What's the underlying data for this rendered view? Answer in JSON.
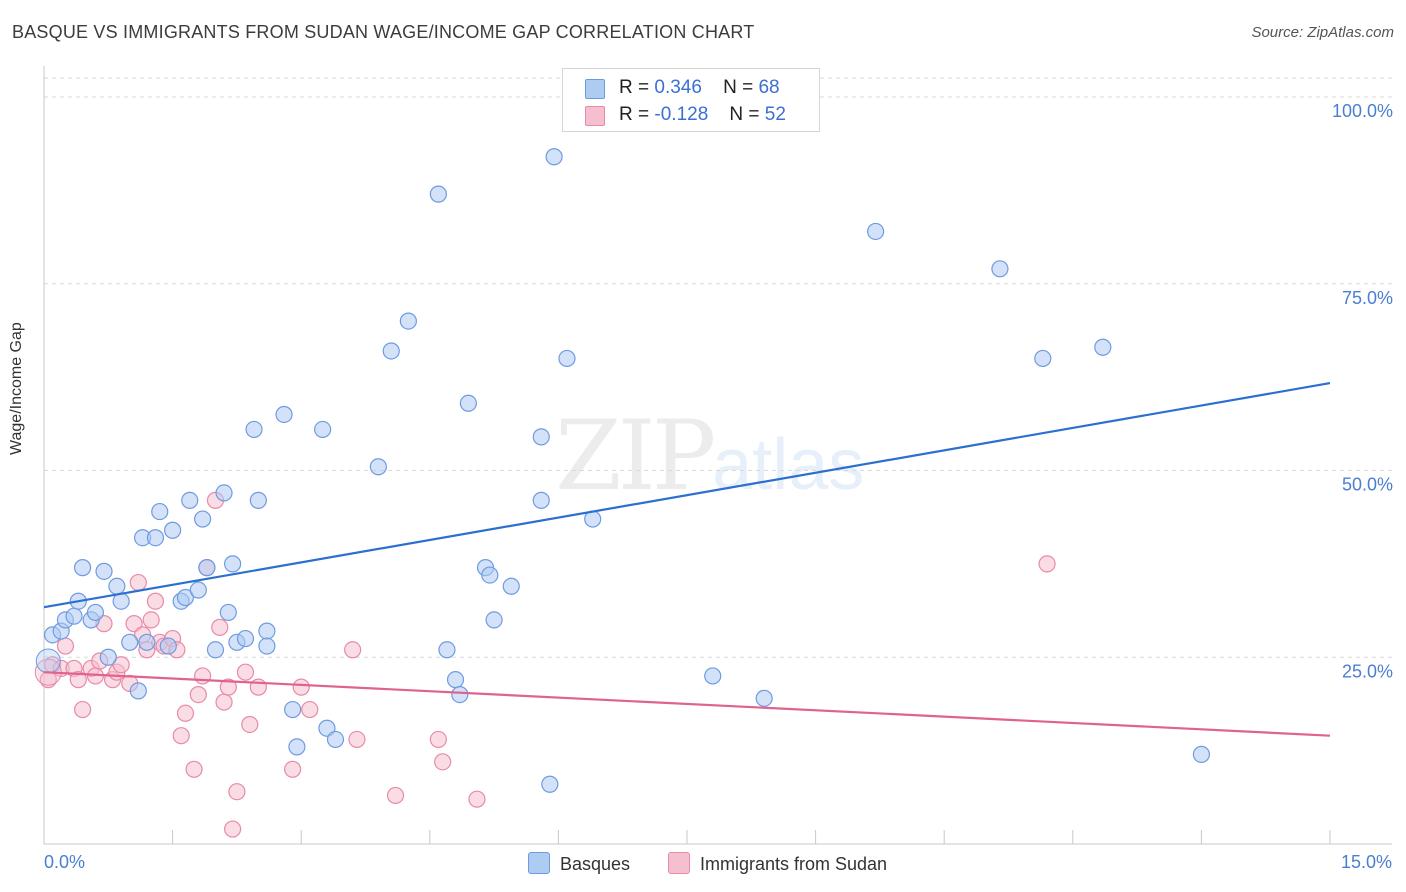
{
  "header": {
    "title": "BASQUE VS IMMIGRANTS FROM SUDAN WAGE/INCOME GAP CORRELATION CHART",
    "source": "Source: ZipAtlas.com"
  },
  "watermark": {
    "zip": "ZIP",
    "atlas": "atlas"
  },
  "legend_top": {
    "rows": [
      {
        "r_label": "R =",
        "r_value": "0.346",
        "n_label": "N =",
        "n_value": "68"
      },
      {
        "r_label": "R =",
        "r_value": "-0.128",
        "n_label": "N =",
        "n_value": "52"
      }
    ]
  },
  "legend_bottom": {
    "series1": "Basques",
    "series2": "Immigrants from Sudan"
  },
  "colors": {
    "blue_fill": "#aecbf2",
    "blue_stroke": "#6e9be0",
    "blue_line": "#2b6fd0",
    "pink_fill": "#f6bfd0",
    "pink_stroke": "#e88aa8",
    "pink_line": "#e0628e",
    "grid": "#d9d9d9",
    "tick_text": "#4a7fd0"
  },
  "chart_data": {
    "type": "scatter",
    "title": "BASQUE VS IMMIGRANTS FROM SUDAN WAGE/INCOME GAP CORRELATION CHART",
    "xlabel": "",
    "ylabel": "Wage/Income Gap",
    "xlim": [
      0,
      15
    ],
    "ylim": [
      0,
      100
    ],
    "x_tick_labels": [
      "0.0%",
      "15.0%"
    ],
    "y_ticks": [
      25,
      50,
      75,
      100
    ],
    "y_tick_labels": [
      "25.0%",
      "50.0%",
      "75.0%",
      "100.0%"
    ],
    "series": [
      {
        "name": "Basques",
        "R": 0.346,
        "N": 68,
        "trend": {
          "x": [
            0,
            15
          ],
          "y": [
            31.7,
            61.7
          ]
        },
        "points": [
          [
            0.1,
            28
          ],
          [
            0.2,
            28.5
          ],
          [
            0.25,
            30
          ],
          [
            0.35,
            30.5
          ],
          [
            0.4,
            32.5
          ],
          [
            0.45,
            37
          ],
          [
            0.55,
            30
          ],
          [
            0.6,
            31
          ],
          [
            0.7,
            36.5
          ],
          [
            0.75,
            25
          ],
          [
            0.85,
            34.5
          ],
          [
            0.9,
            32.5
          ],
          [
            1.0,
            27
          ],
          [
            1.1,
            20.5
          ],
          [
            1.15,
            41
          ],
          [
            1.2,
            27
          ],
          [
            1.3,
            41
          ],
          [
            1.35,
            44.5
          ],
          [
            1.45,
            26.5
          ],
          [
            1.5,
            42
          ],
          [
            1.6,
            32.5
          ],
          [
            1.65,
            33
          ],
          [
            1.7,
            46
          ],
          [
            1.8,
            34
          ],
          [
            1.85,
            43.5
          ],
          [
            1.9,
            37
          ],
          [
            2.0,
            26
          ],
          [
            2.1,
            47
          ],
          [
            2.15,
            31
          ],
          [
            2.2,
            37.5
          ],
          [
            2.25,
            27
          ],
          [
            2.35,
            27.5
          ],
          [
            2.45,
            55.5
          ],
          [
            2.5,
            46
          ],
          [
            2.6,
            28.5
          ],
          [
            2.6,
            26.5
          ],
          [
            2.8,
            57.5
          ],
          [
            2.9,
            18
          ],
          [
            2.95,
            13
          ],
          [
            3.25,
            55.5
          ],
          [
            3.3,
            15.5
          ],
          [
            3.4,
            14
          ],
          [
            3.9,
            50.5
          ],
          [
            4.05,
            66
          ],
          [
            4.25,
            70
          ],
          [
            4.6,
            87
          ],
          [
            4.7,
            26
          ],
          [
            4.8,
            22
          ],
          [
            4.85,
            20
          ],
          [
            4.95,
            59
          ],
          [
            5.15,
            37
          ],
          [
            5.2,
            36
          ],
          [
            5.25,
            30
          ],
          [
            5.45,
            34.5
          ],
          [
            5.8,
            46
          ],
          [
            5.8,
            54.5
          ],
          [
            5.9,
            8
          ],
          [
            5.95,
            92
          ],
          [
            6.1,
            65
          ],
          [
            6.4,
            43.5
          ],
          [
            7.8,
            22.5
          ],
          [
            8.4,
            19.5
          ],
          [
            9.7,
            82
          ],
          [
            11.15,
            77
          ],
          [
            11.65,
            65
          ],
          [
            12.35,
            66.5
          ],
          [
            13.5,
            12
          ]
        ]
      },
      {
        "name": "Immigrants from Sudan",
        "R": -0.128,
        "N": 52,
        "trend": {
          "x": [
            0,
            15
          ],
          "y": [
            23.0,
            14.5
          ]
        },
        "points": [
          [
            0.05,
            22
          ],
          [
            0.1,
            24
          ],
          [
            0.2,
            23.5
          ],
          [
            0.25,
            26.5
          ],
          [
            0.35,
            23.5
          ],
          [
            0.4,
            22
          ],
          [
            0.45,
            18
          ],
          [
            0.55,
            23.5
          ],
          [
            0.6,
            22.5
          ],
          [
            0.65,
            24.5
          ],
          [
            0.7,
            29.5
          ],
          [
            0.8,
            22
          ],
          [
            0.85,
            23
          ],
          [
            0.9,
            24
          ],
          [
            1.0,
            21.5
          ],
          [
            1.05,
            29.5
          ],
          [
            1.1,
            35
          ],
          [
            1.15,
            28
          ],
          [
            1.2,
            26
          ],
          [
            1.25,
            30
          ],
          [
            1.3,
            32.5
          ],
          [
            1.35,
            27
          ],
          [
            1.4,
            26.5
          ],
          [
            1.5,
            27.5
          ],
          [
            1.55,
            26
          ],
          [
            1.6,
            14.5
          ],
          [
            1.65,
            17.5
          ],
          [
            1.75,
            10
          ],
          [
            1.8,
            20
          ],
          [
            1.85,
            22.5
          ],
          [
            1.9,
            37
          ],
          [
            2.0,
            46
          ],
          [
            2.05,
            29
          ],
          [
            2.1,
            19
          ],
          [
            2.15,
            21
          ],
          [
            2.2,
            2
          ],
          [
            2.25,
            7
          ],
          [
            2.35,
            23
          ],
          [
            2.4,
            16
          ],
          [
            2.5,
            21
          ],
          [
            2.9,
            10
          ],
          [
            3.0,
            21
          ],
          [
            3.1,
            18
          ],
          [
            3.6,
            26
          ],
          [
            3.65,
            14
          ],
          [
            4.1,
            6.5
          ],
          [
            4.6,
            14
          ],
          [
            4.65,
            11
          ],
          [
            5.05,
            6
          ],
          [
            11.7,
            37.5
          ]
        ]
      }
    ]
  }
}
